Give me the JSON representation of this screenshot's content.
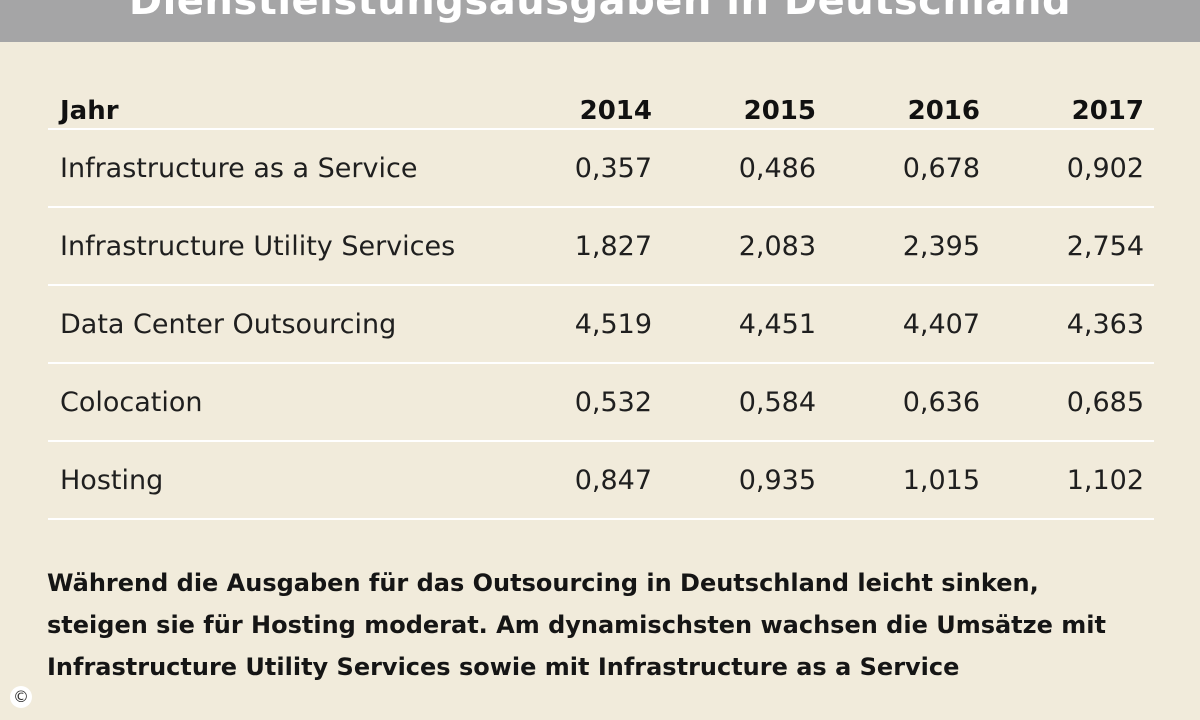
{
  "title": "Dienstleistungsausgaben in Deutschland",
  "chart_data": {
    "type": "table",
    "title": "Dienstleistungsausgaben in Deutschland",
    "header_label": "Jahr",
    "columns": [
      "2014",
      "2015",
      "2016",
      "2017"
    ],
    "rows": [
      {
        "label": "Infrastructure as a Service",
        "values": [
          "0,357",
          "0,486",
          "0,678",
          "0,902"
        ]
      },
      {
        "label": "Infrastructure Utility Services",
        "values": [
          "1,827",
          "2,083",
          "2,395",
          "2,754"
        ]
      },
      {
        "label": "Data Center Outsourcing",
        "values": [
          "4,519",
          "4,451",
          "4,407",
          "4,363"
        ]
      },
      {
        "label": "Colocation",
        "values": [
          "0,532",
          "0,584",
          "0,636",
          "0,685"
        ]
      },
      {
        "label": "Hosting",
        "values": [
          "0,847",
          "0,935",
          "1,015",
          "1,102"
        ]
      }
    ]
  },
  "caption": "Während die Ausgaben für das Outsourcing in Deutschland leicht sinken, steigen sie für Hosting moderat. Am dynamischsten wachsen die Umsätze mit Infrastructure Utility Services sowie mit Infrastructure as a Service",
  "copyright_symbol": "©",
  "colors": {
    "background": "#f1ebdb",
    "title_bar": "#a5a5a6",
    "row_divider": "#ffffff"
  }
}
